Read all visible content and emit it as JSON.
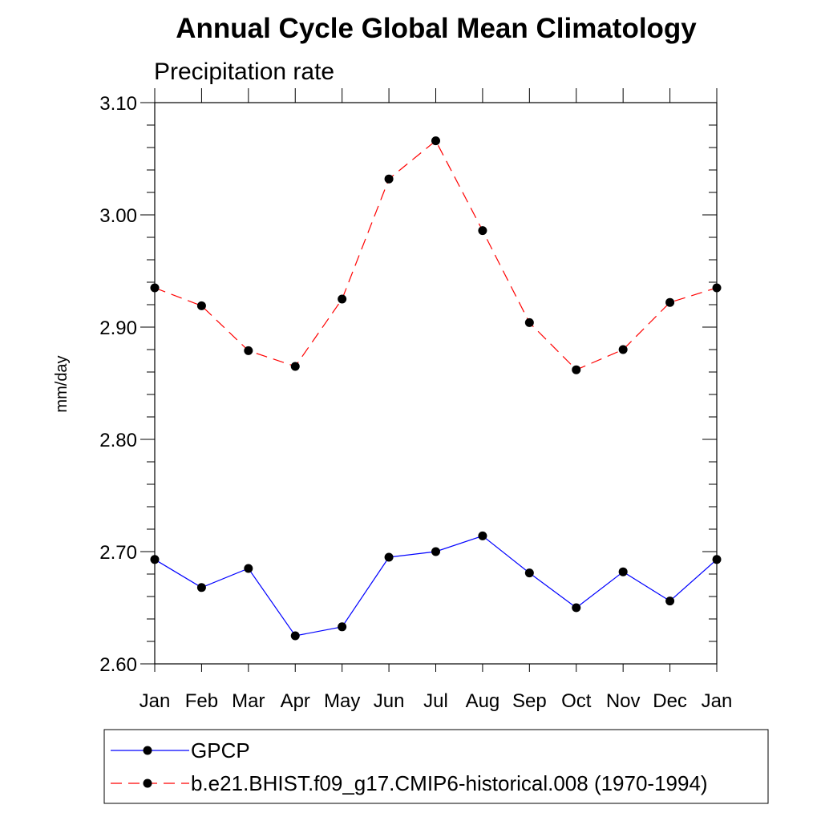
{
  "chart_data": {
    "type": "line",
    "title": "Annual Cycle Global Mean Climatology",
    "subtitle": "Precipitation rate",
    "xlabel": "",
    "ylabel": "mm/day",
    "categories": [
      "Jan",
      "Feb",
      "Mar",
      "Apr",
      "May",
      "Jun",
      "Jul",
      "Aug",
      "Sep",
      "Oct",
      "Nov",
      "Dec",
      "Jan"
    ],
    "ylim": [
      2.6,
      3.1
    ],
    "yticks": [
      2.6,
      2.7,
      2.8,
      2.9,
      3.0,
      3.1
    ],
    "ytick_labels": [
      "2.60",
      "2.70",
      "2.80",
      "2.90",
      "3.00",
      "3.10"
    ],
    "legend_position": "bottom",
    "series": [
      {
        "name": "GPCP",
        "color": "#0000ff",
        "line_style": "solid",
        "marker": "circle",
        "values": [
          2.693,
          2.668,
          2.685,
          2.625,
          2.633,
          2.695,
          2.7,
          2.714,
          2.681,
          2.65,
          2.682,
          2.656,
          2.693
        ]
      },
      {
        "name": "b.e21.BHIST.f09_g17.CMIP6-historical.008 (1970-1994)",
        "color": "#ff0000",
        "line_style": "dashed",
        "marker": "circle",
        "values": [
          2.935,
          2.919,
          2.879,
          2.865,
          2.925,
          3.032,
          3.066,
          2.986,
          2.904,
          2.862,
          2.88,
          2.922,
          2.935
        ]
      }
    ]
  }
}
